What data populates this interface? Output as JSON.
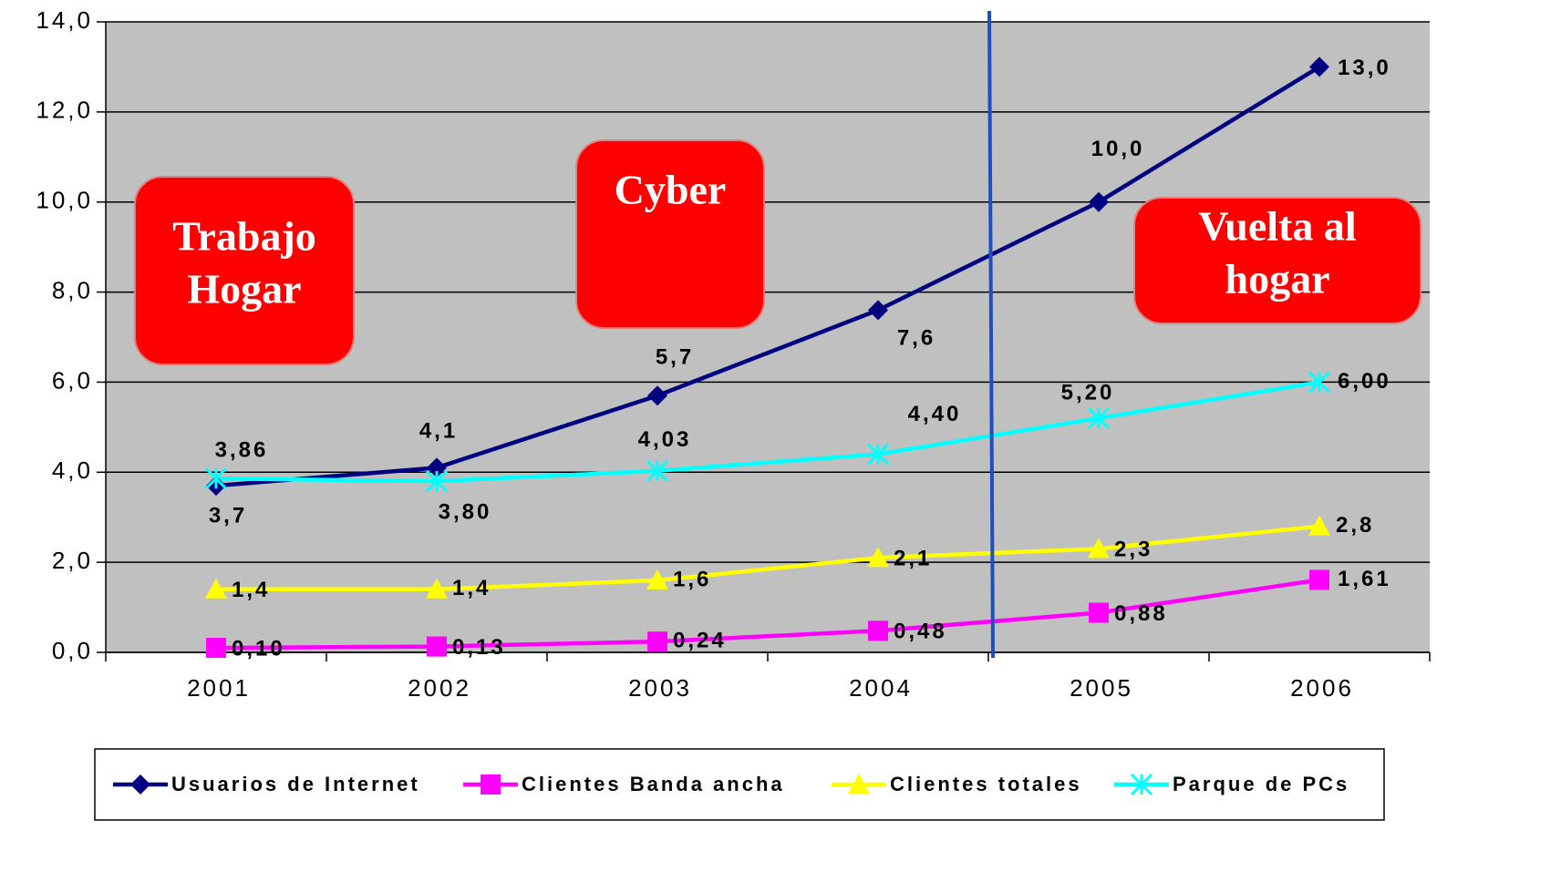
{
  "chart_data": {
    "type": "line",
    "categories": [
      "2001",
      "2002",
      "2003",
      "2004",
      "2005",
      "2006"
    ],
    "series": [
      {
        "name": "Usuarios de Internet",
        "color": "#000080",
        "marker": "diamond",
        "values": [
          3.7,
          4.1,
          5.7,
          7.6,
          10.0,
          13.0
        ],
        "value_labels": [
          "3,7",
          "4,1",
          "5,7",
          "7,6",
          "10,0",
          "13,0"
        ]
      },
      {
        "name": "Clientes Banda ancha",
        "color": "#ff00ff",
        "marker": "square",
        "values": [
          0.1,
          0.13,
          0.24,
          0.48,
          0.88,
          1.61
        ],
        "value_labels": [
          "0,10",
          "0,13",
          "0,24",
          "0,48",
          "0,88",
          "1,61"
        ]
      },
      {
        "name": "Clientes totales",
        "color": "#ffff00",
        "marker": "triangle",
        "values": [
          1.4,
          1.4,
          1.6,
          2.1,
          2.3,
          2.8
        ],
        "value_labels": [
          "1,4",
          "1,4",
          "1,6",
          "2,1",
          "2,3",
          "2,8"
        ]
      },
      {
        "name": "Parque de PCs",
        "color": "#00ffff",
        "marker": "star",
        "values": [
          3.86,
          3.8,
          4.03,
          4.4,
          5.2,
          6.0
        ],
        "value_labels": [
          "3,86",
          "3,80",
          "4,03",
          "4,40",
          "5,20",
          "6,00"
        ]
      }
    ],
    "ylim": [
      0,
      14
    ],
    "yticks": [
      {
        "value": 0,
        "label": "0,0"
      },
      {
        "value": 2,
        "label": "2,0"
      },
      {
        "value": 4,
        "label": "4,0"
      },
      {
        "value": 6,
        "label": "6,0"
      },
      {
        "value": 8,
        "label": "8,0"
      },
      {
        "value": 10,
        "label": "10,0"
      },
      {
        "value": 12,
        "label": "12,0"
      },
      {
        "value": 14,
        "label": "14,0"
      }
    ],
    "grid": true,
    "legend": "bottom",
    "annotations": [
      {
        "text": [
          "Trabajo",
          "Hogar"
        ]
      },
      {
        "text": [
          "Cyber"
        ]
      },
      {
        "text": [
          "Vuelta al",
          "hogar"
        ]
      }
    ]
  }
}
